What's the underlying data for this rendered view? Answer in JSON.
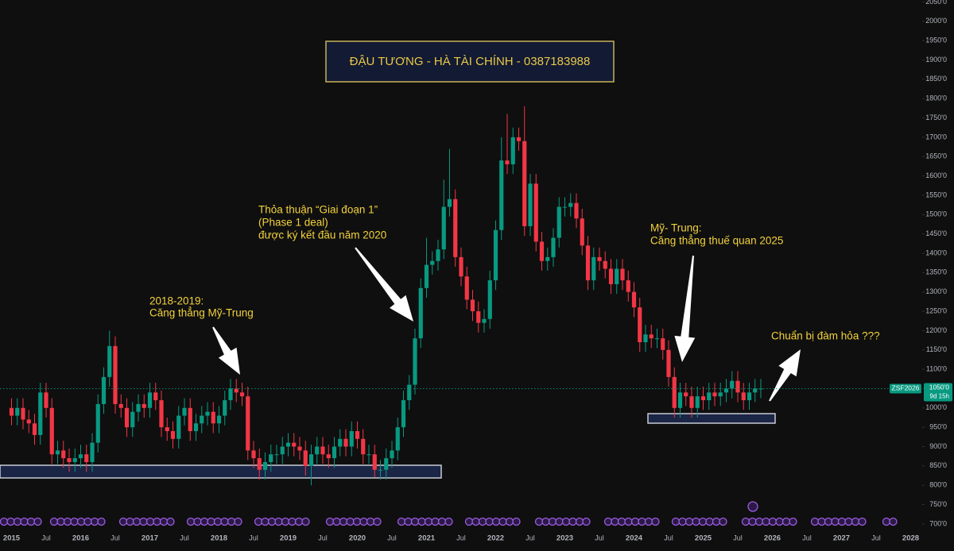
{
  "chart_data": {
    "type": "candlestick",
    "title": "ĐẬU TƯƠNG - HÀ TÀI CHÍNH - 0387183988",
    "x": [
      "2015-01",
      "2015-02",
      "2015-03",
      "2015-04",
      "2015-05",
      "2015-06",
      "2015-07",
      "2015-08",
      "2015-09",
      "2015-10",
      "2015-11",
      "2015-12",
      "2016-01",
      "2016-02",
      "2016-03",
      "2016-04",
      "2016-05",
      "2016-06",
      "2016-07",
      "2016-08",
      "2016-09",
      "2016-10",
      "2016-11",
      "2016-12",
      "2017-01",
      "2017-02",
      "2017-03",
      "2017-04",
      "2017-05",
      "2017-06",
      "2017-07",
      "2017-08",
      "2017-09",
      "2017-10",
      "2017-11",
      "2017-12",
      "2018-01",
      "2018-02",
      "2018-03",
      "2018-04",
      "2018-05",
      "2018-06",
      "2018-07",
      "2018-08",
      "2018-09",
      "2018-10",
      "2018-11",
      "2018-12",
      "2019-01",
      "2019-02",
      "2019-03",
      "2019-04",
      "2019-05",
      "2019-06",
      "2019-07",
      "2019-08",
      "2019-09",
      "2019-10",
      "2019-11",
      "2019-12",
      "2020-01",
      "2020-02",
      "2020-03",
      "2020-04",
      "2020-05",
      "2020-06",
      "2020-07",
      "2020-08",
      "2020-09",
      "2020-10",
      "2020-11",
      "2020-12",
      "2021-01",
      "2021-02",
      "2021-03",
      "2021-04",
      "2021-05",
      "2021-06",
      "2021-07",
      "2021-08",
      "2021-09",
      "2021-10",
      "2021-11",
      "2021-12",
      "2022-01",
      "2022-02",
      "2022-03",
      "2022-04",
      "2022-05",
      "2022-06",
      "2022-07",
      "2022-08",
      "2022-09",
      "2022-10",
      "2022-11",
      "2022-12",
      "2023-01",
      "2023-02",
      "2023-03",
      "2023-04",
      "2023-05",
      "2023-06",
      "2023-07",
      "2023-08",
      "2023-09",
      "2023-10",
      "2023-11",
      "2023-12",
      "2024-01",
      "2024-02",
      "2024-03",
      "2024-04",
      "2024-05",
      "2024-06",
      "2024-07",
      "2024-08",
      "2024-09",
      "2024-10",
      "2024-11",
      "2024-12",
      "2025-01",
      "2025-02",
      "2025-03",
      "2025-04",
      "2025-05",
      "2025-06",
      "2025-07",
      "2025-08",
      "2025-09",
      "2025-10",
      "2025-11"
    ],
    "open": [
      1000,
      980,
      1000,
      970,
      960,
      930,
      1040,
      1000,
      880,
      890,
      870,
      860,
      870,
      880,
      860,
      910,
      1010,
      1080,
      1160,
      1010,
      1000,
      950,
      990,
      1010,
      1000,
      1040,
      1020,
      950,
      940,
      920,
      980,
      1000,
      940,
      960,
      980,
      990,
      960,
      980,
      1020,
      1050,
      1040,
      1030,
      890,
      870,
      840,
      860,
      880,
      880,
      900,
      910,
      900,
      890,
      850,
      880,
      900,
      880,
      870,
      900,
      920,
      900,
      940,
      920,
      880,
      880,
      840,
      840,
      870,
      890,
      950,
      1020,
      1060,
      1180,
      1310,
      1370,
      1380,
      1410,
      1520,
      1540,
      1390,
      1340,
      1280,
      1250,
      1220,
      1230,
      1330,
      1460,
      1640,
      1630,
      1700,
      1690,
      1470,
      1580,
      1430,
      1380,
      1390,
      1440,
      1520,
      1520,
      1530,
      1490,
      1420,
      1330,
      1390,
      1380,
      1360,
      1320,
      1360,
      1330,
      1300,
      1260,
      1170,
      1190,
      1180,
      1180,
      1150,
      1080,
      1000,
      1040,
      1030,
      1000,
      1030,
      1020,
      1040,
      1030,
      1040,
      1050,
      1070,
      1040,
      1020,
      1040,
      1050
    ],
    "high": [
      1025,
      1025,
      1025,
      995,
      985,
      1065,
      1065,
      1025,
      915,
      915,
      895,
      895,
      905,
      905,
      935,
      1035,
      1105,
      1200,
      1185,
      1035,
      1025,
      1015,
      1035,
      1035,
      1065,
      1065,
      1045,
      975,
      965,
      1005,
      1025,
      1025,
      985,
      1005,
      1015,
      1015,
      1005,
      1045,
      1075,
      1075,
      1065,
      1055,
      915,
      895,
      885,
      905,
      905,
      925,
      935,
      935,
      925,
      915,
      905,
      925,
      925,
      905,
      925,
      945,
      945,
      965,
      965,
      945,
      905,
      905,
      865,
      895,
      915,
      975,
      1045,
      1085,
      1205,
      1335,
      1440,
      1405,
      1435,
      1590,
      1670,
      1565,
      1415,
      1365,
      1305,
      1275,
      1255,
      1355,
      1485,
      1700,
      1760,
      1725,
      1725,
      1780,
      1605,
      1605,
      1455,
      1415,
      1465,
      1545,
      1545,
      1555,
      1555,
      1515,
      1445,
      1415,
      1415,
      1405,
      1385,
      1385,
      1385,
      1355,
      1325,
      1285,
      1215,
      1215,
      1205,
      1205,
      1175,
      1105,
      1065,
      1065,
      1055,
      1055,
      1055,
      1065,
      1065,
      1065,
      1075,
      1095,
      1095,
      1065,
      1065,
      1075,
      1075
    ],
    "low": [
      955,
      955,
      945,
      935,
      905,
      905,
      975,
      855,
      855,
      845,
      835,
      835,
      845,
      835,
      835,
      885,
      985,
      1055,
      985,
      975,
      925,
      925,
      965,
      975,
      975,
      995,
      925,
      915,
      895,
      895,
      955,
      915,
      915,
      935,
      955,
      935,
      935,
      955,
      995,
      1015,
      1005,
      865,
      845,
      815,
      815,
      835,
      855,
      855,
      875,
      875,
      865,
      825,
      800,
      855,
      855,
      845,
      845,
      875,
      875,
      875,
      895,
      855,
      855,
      820,
      815,
      815,
      845,
      865,
      925,
      995,
      1035,
      1155,
      1285,
      1345,
      1355,
      1385,
      1495,
      1365,
      1315,
      1255,
      1225,
      1195,
      1195,
      1205,
      1305,
      1435,
      1605,
      1605,
      1665,
      1445,
      1445,
      1405,
      1355,
      1355,
      1365,
      1415,
      1495,
      1495,
      1465,
      1395,
      1305,
      1305,
      1355,
      1335,
      1295,
      1295,
      1305,
      1275,
      1235,
      1145,
      1145,
      1155,
      1155,
      1125,
      1055,
      975,
      975,
      1005,
      975,
      975,
      995,
      995,
      1005,
      1005,
      1015,
      1025,
      1015,
      995,
      995,
      1015,
      1025
    ],
    "close": [
      980,
      1000,
      970,
      960,
      930,
      1040,
      1000,
      880,
      890,
      870,
      860,
      870,
      880,
      860,
      910,
      1010,
      1080,
      1160,
      1010,
      1000,
      950,
      990,
      1010,
      1000,
      1040,
      1020,
      950,
      940,
      920,
      980,
      1000,
      940,
      960,
      980,
      990,
      960,
      980,
      1020,
      1050,
      1040,
      1030,
      890,
      870,
      840,
      860,
      880,
      880,
      900,
      910,
      900,
      890,
      850,
      880,
      900,
      880,
      870,
      900,
      920,
      900,
      940,
      920,
      880,
      880,
      840,
      840,
      870,
      890,
      950,
      1020,
      1060,
      1180,
      1310,
      1370,
      1380,
      1410,
      1520,
      1540,
      1390,
      1340,
      1280,
      1250,
      1220,
      1230,
      1330,
      1460,
      1640,
      1630,
      1700,
      1690,
      1470,
      1580,
      1430,
      1380,
      1390,
      1440,
      1520,
      1520,
      1530,
      1490,
      1420,
      1330,
      1390,
      1380,
      1360,
      1320,
      1360,
      1330,
      1300,
      1260,
      1170,
      1190,
      1180,
      1180,
      1150,
      1080,
      1000,
      1040,
      1030,
      1000,
      1030,
      1020,
      1040,
      1030,
      1040,
      1050,
      1070,
      1040,
      1020,
      1040,
      1050,
      1050
    ],
    "up_color": "#089981",
    "down_color": "#f23645",
    "xlim": [
      "2014-11",
      "2028-03"
    ],
    "xticks": [
      {
        "value": "2015-01",
        "label": "2015"
      },
      {
        "value": "2015-07",
        "label": "Jul"
      },
      {
        "value": "2016-01",
        "label": "2016"
      },
      {
        "value": "2016-07",
        "label": "Jul"
      },
      {
        "value": "2017-01",
        "label": "2017"
      },
      {
        "value": "2017-07",
        "label": "Jul"
      },
      {
        "value": "2018-01",
        "label": "2018"
      },
      {
        "value": "2018-07",
        "label": "Jul"
      },
      {
        "value": "2019-01",
        "label": "2019"
      },
      {
        "value": "2019-07",
        "label": "Jul"
      },
      {
        "value": "2020-01",
        "label": "2020"
      },
      {
        "value": "2020-07",
        "label": "Jul"
      },
      {
        "value": "2021-01",
        "label": "2021"
      },
      {
        "value": "2021-07",
        "label": "Jul"
      },
      {
        "value": "2022-01",
        "label": "2022"
      },
      {
        "value": "2022-07",
        "label": "Jul"
      },
      {
        "value": "2023-01",
        "label": "2023"
      },
      {
        "value": "2023-07",
        "label": "Jul"
      },
      {
        "value": "2024-01",
        "label": "2024"
      },
      {
        "value": "2024-07",
        "label": "Jul"
      },
      {
        "value": "2025-01",
        "label": "2025"
      },
      {
        "value": "2025-07",
        "label": "Jul"
      },
      {
        "value": "2026-01",
        "label": "2026"
      },
      {
        "value": "2026-07",
        "label": "Jul"
      },
      {
        "value": "2027-01",
        "label": "2027"
      },
      {
        "value": "2027-07",
        "label": "Jul"
      },
      {
        "value": "2028-01",
        "label": "2028"
      }
    ],
    "ylim": [
      630,
      2055
    ],
    "yticks": [
      {
        "value": 700,
        "label": "700'0"
      },
      {
        "value": 750,
        "label": "750'0"
      },
      {
        "value": 800,
        "label": "800'0"
      },
      {
        "value": 850,
        "label": "850'0"
      },
      {
        "value": 900,
        "label": "900'0"
      },
      {
        "value": 950,
        "label": "950'0"
      },
      {
        "value": 1000,
        "label": "1000'0"
      },
      {
        "value": 1050,
        "label": "1050'0"
      },
      {
        "value": 1100,
        "label": "1100'0"
      },
      {
        "value": 1150,
        "label": "1150'0"
      },
      {
        "value": 1200,
        "label": "1200'0"
      },
      {
        "value": 1250,
        "label": "1250'0"
      },
      {
        "value": 1300,
        "label": "1300'0"
      },
      {
        "value": 1350,
        "label": "1350'0"
      },
      {
        "value": 1400,
        "label": "1400'0"
      },
      {
        "value": 1450,
        "label": "1450'0"
      },
      {
        "value": 1500,
        "label": "1500'0"
      },
      {
        "value": 1550,
        "label": "1550'0"
      },
      {
        "value": 1600,
        "label": "1600'0"
      },
      {
        "value": 1650,
        "label": "1650'0"
      },
      {
        "value": 1700,
        "label": "1700'0"
      },
      {
        "value": 1750,
        "label": "1750'0"
      },
      {
        "value": 1800,
        "label": "1800'0"
      },
      {
        "value": 1850,
        "label": "1850'0"
      },
      {
        "value": 1900,
        "label": "1900'0"
      },
      {
        "value": 1950,
        "label": "1950'0"
      },
      {
        "value": 2000,
        "label": "2000'0"
      },
      {
        "value": 2050,
        "label": "2050'0"
      }
    ],
    "grid": false,
    "last_price": {
      "symbol": "ZSF2026",
      "value": 1050,
      "label": "1050'0",
      "countdown": "9d 15h"
    },
    "annotations": [
      {
        "lines": [
          "2018-2019:",
          "Căng thẳng Mỹ-Trung"
        ]
      },
      {
        "lines": [
          "Thỏa thuận “Giai đoạn 1”",
          "(Phase 1 deal)",
          "được ký kết đầu năm 2020"
        ]
      },
      {
        "lines": [
          "Mỹ- Trung:",
          "Căng thẳng thuế quan 2025"
        ]
      },
      {
        "lines": [
          "Chuẩn bị đàm hỏa ???"
        ]
      }
    ]
  }
}
